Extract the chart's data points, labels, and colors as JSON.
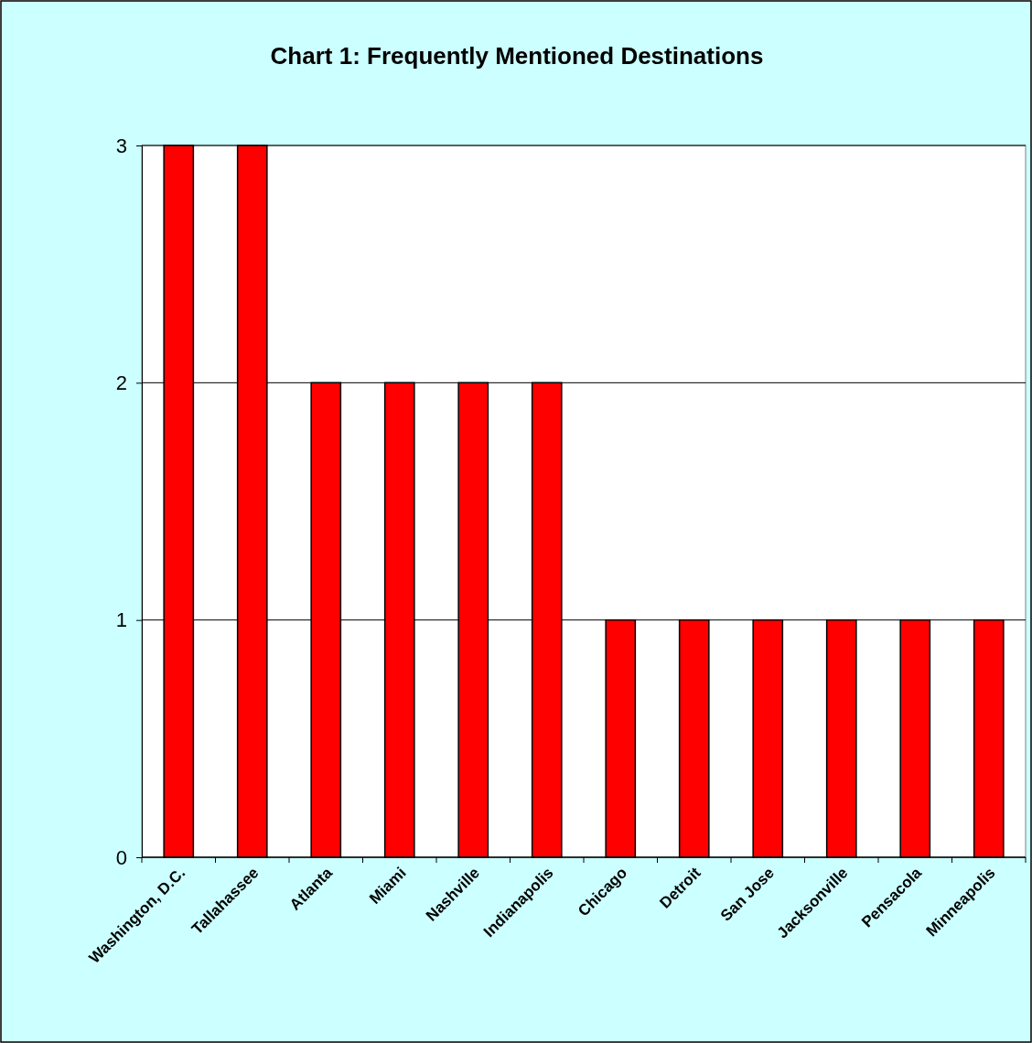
{
  "chart_data": {
    "type": "bar",
    "title": "Chart 1: Frequently Mentioned Destinations",
    "categories": [
      "Washington, D.C.",
      "Tallahassee",
      "Atlanta",
      "Miami",
      "Nashville",
      "Indianapolis",
      "Chicago",
      "Detroit",
      "San Jose",
      "Jacksonville",
      "Pensacola",
      "Minneapolis"
    ],
    "values": [
      3,
      3,
      2,
      2,
      2,
      2,
      1,
      1,
      1,
      1,
      1,
      1
    ],
    "color": "#ff0000",
    "ylim": [
      0,
      3
    ],
    "yticks": [
      0,
      1,
      2,
      3
    ],
    "grid": "y"
  }
}
